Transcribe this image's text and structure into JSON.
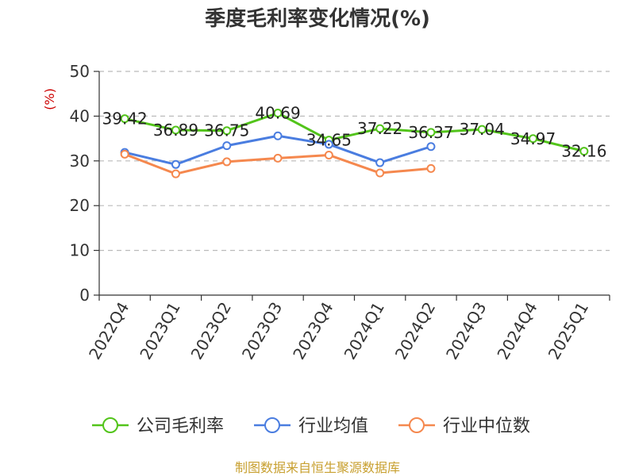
{
  "chart_data": {
    "type": "line",
    "title": "季度毛利率变化情况(%)",
    "ylabel": "(%)",
    "ylim": [
      0,
      50
    ],
    "yticks": [
      0,
      10,
      20,
      30,
      40,
      50
    ],
    "grid": true,
    "legend_position": "bottom",
    "categories": [
      "2022Q4",
      "2023Q1",
      "2023Q2",
      "2023Q3",
      "2023Q4",
      "2024Q1",
      "2024Q2",
      "2024Q3",
      "2024Q4",
      "2025Q1"
    ],
    "series": [
      {
        "name": "公司毛利率",
        "color": "#52c41a",
        "values": [
          39.42,
          36.89,
          36.75,
          40.69,
          34.65,
          37.22,
          36.37,
          37.04,
          34.97,
          32.16
        ],
        "labels": [
          "39.42",
          "36.89",
          "36.75",
          "40.69",
          "34.65",
          "37.22",
          "36.37",
          "37.04",
          "34.97",
          "32.16"
        ]
      },
      {
        "name": "行业均值",
        "color": "#4a7de0",
        "values": [
          31.9,
          29.2,
          33.4,
          35.6,
          33.7,
          29.6,
          33.2,
          null,
          null,
          null
        ]
      },
      {
        "name": "行业中位数",
        "color": "#f5884e",
        "values": [
          31.5,
          27.1,
          29.8,
          30.6,
          31.3,
          27.3,
          28.3,
          null,
          null,
          null
        ]
      }
    ],
    "source": "制图数据来自恒生聚源数据库",
    "colors": {
      "title": "#333333",
      "unit": "#cc0000",
      "source": "#c8a030",
      "grid": "#bbbbbb"
    }
  }
}
